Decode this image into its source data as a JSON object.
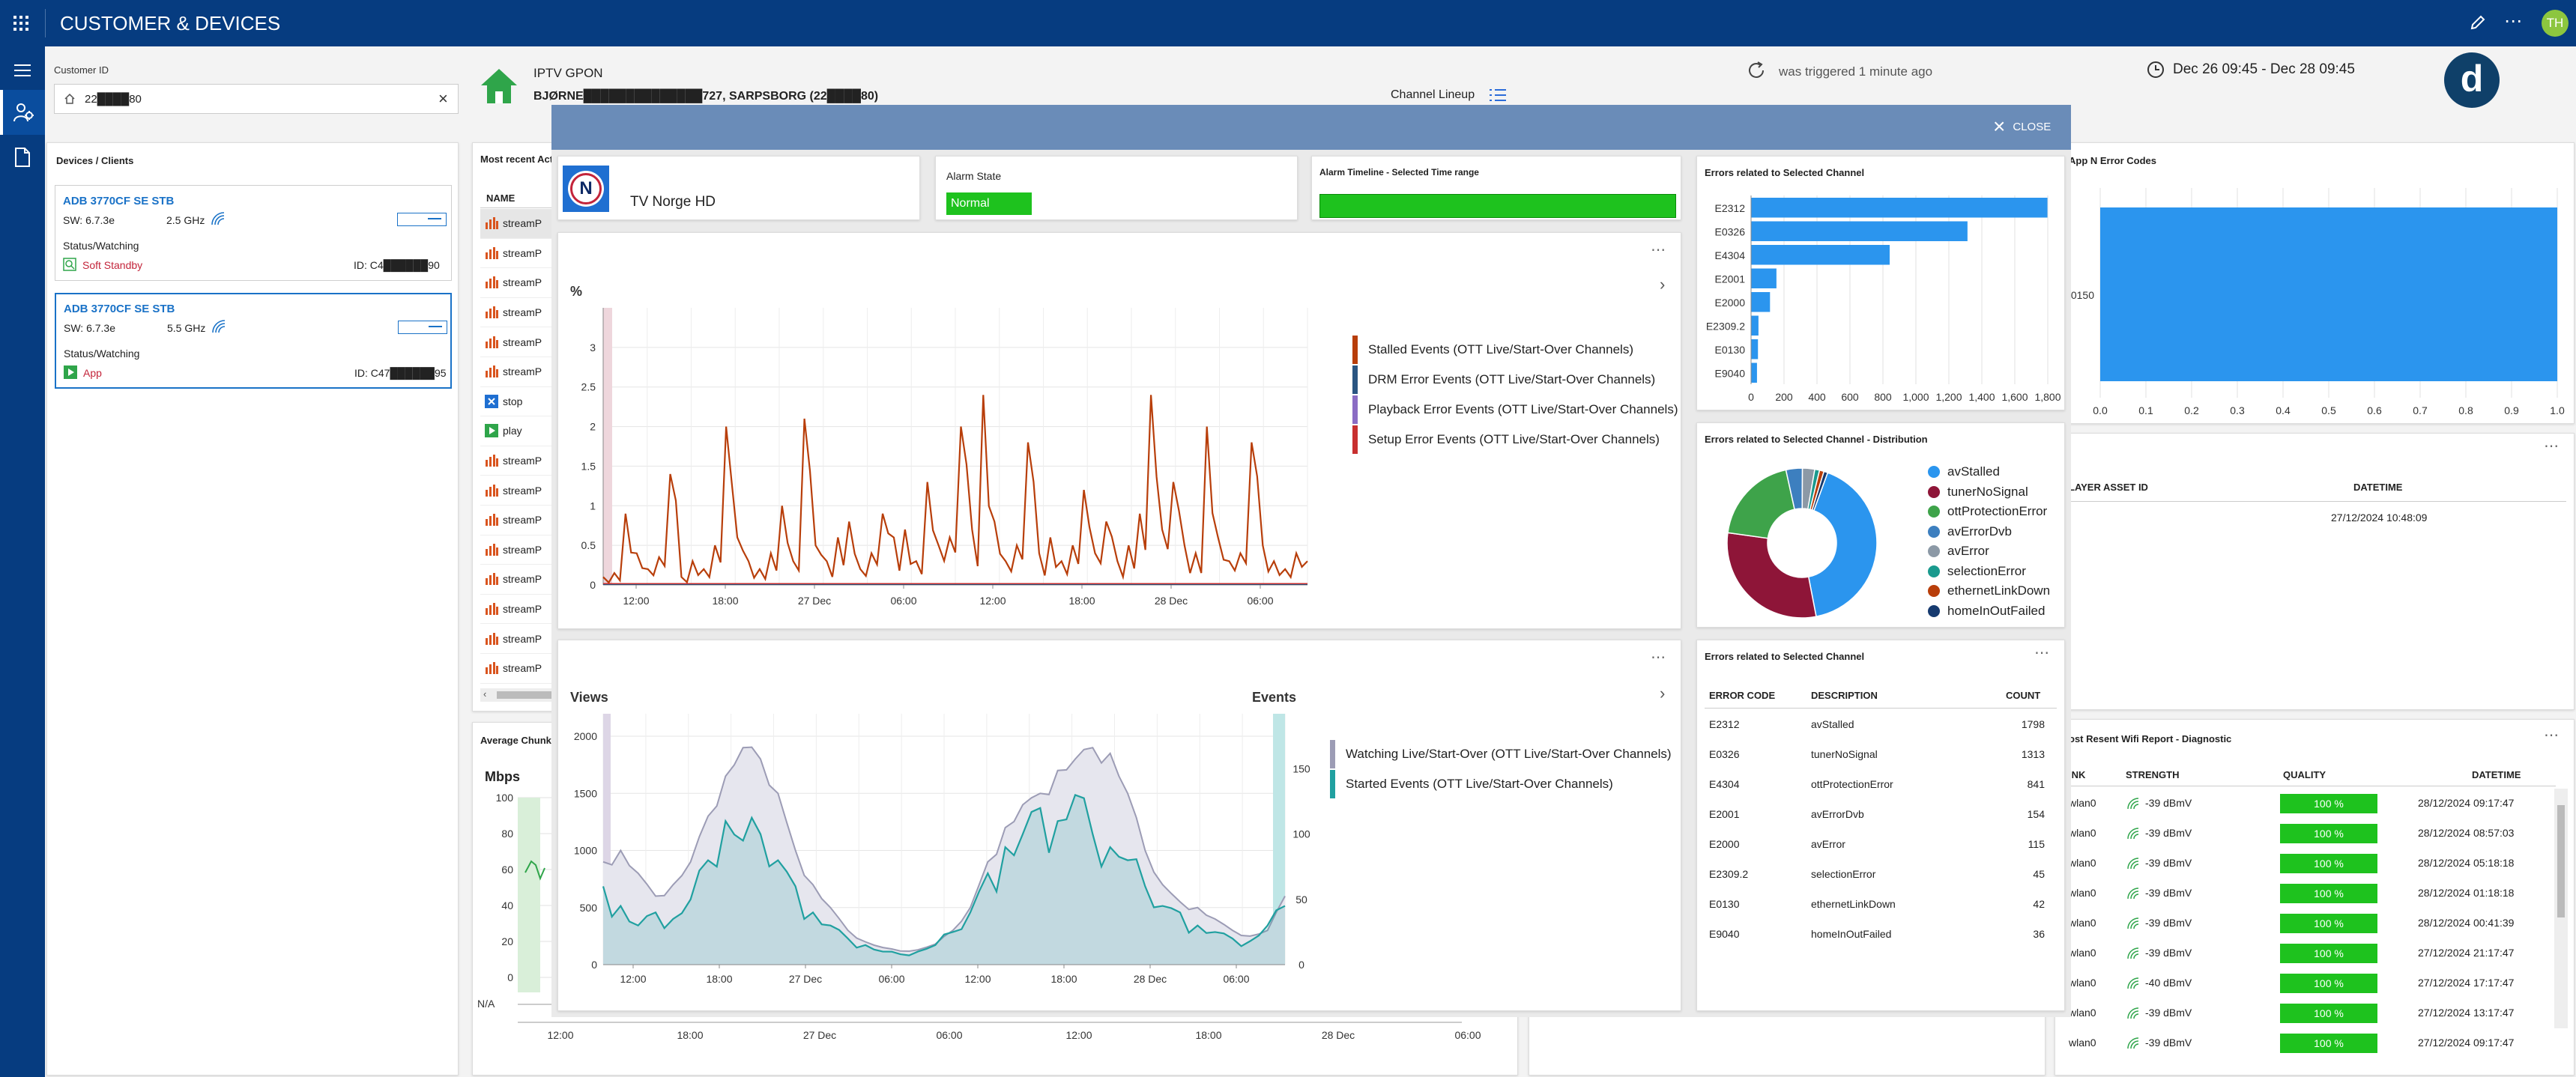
{
  "app": {
    "title": "CUSTOMER & DEVICES",
    "avatar": "TH",
    "brand_logo": "d"
  },
  "customer": {
    "label": "Customer ID",
    "value": "22████80"
  },
  "service": {
    "type": "IPTV GPON",
    "address": "BJØRNE██████████████727, SARPSBORG (22████80)",
    "channel_lineup": "Channel Lineup"
  },
  "trigger": {
    "text": "was triggered 1 minute ago"
  },
  "date_range": {
    "text": "Dec 26 09:45 - Dec 28 09:45"
  },
  "devices": {
    "title": "Devices / Clients",
    "items": [
      {
        "name": "ADB 3770CF SE STB",
        "sw": "SW: 6.7.3e",
        "wifi": "2.5 GHz",
        "status_label": "Status/Watching",
        "status": "Soft Standby",
        "id": "ID: C4██████90"
      },
      {
        "name": "ADB 3770CF SE STB",
        "sw": "SW: 6.7.3e",
        "wifi": "5.5 GHz",
        "status_label": "Status/Watching",
        "status": "App",
        "id": "ID: C47██████95"
      }
    ]
  },
  "recent_activity": {
    "title": "Most recent Act",
    "header": "NAME",
    "rows": [
      "streamP",
      "streamP",
      "streamP",
      "streamP",
      "streamP",
      "streamP",
      "stop",
      "play",
      "streamP",
      "streamP",
      "streamP",
      "streamP",
      "streamP",
      "streamP",
      "streamP",
      "streamP"
    ]
  },
  "avg_chunk": {
    "title": "Average Chunk",
    "unit": "Mbps",
    "y_ticks": [
      "100",
      "80",
      "60",
      "40",
      "20",
      "0"
    ],
    "na_label": "N/A",
    "x_ticks": [
      "12:00",
      "18:00",
      "27 Dec",
      "06:00",
      "12:00",
      "18:00",
      "28 Dec",
      "06:00"
    ]
  },
  "app_errors": {
    "title": "App N Error Codes",
    "category": "0150",
    "x_ticks": [
      "0.0",
      "0.1",
      "0.2",
      "0.3",
      "0.4",
      "0.5",
      "0.6",
      "0.7",
      "0.8",
      "0.9",
      "1.0"
    ],
    "value": 1.0
  },
  "player_asset": {
    "col1": "LAYER ASSET ID",
    "col2": "DATETIME",
    "row_datetime": "27/12/2024 10:48:09"
  },
  "wifi_report": {
    "title": "ost Resent Wifi Report - Diagnostic",
    "headers": [
      "INK",
      "STRENGTH",
      "QUALITY",
      "DATETIME"
    ],
    "rows": [
      {
        "link": "wlan0",
        "strength": "-39 dBmV",
        "quality": "100 %",
        "datetime": "28/12/2024 09:17:47"
      },
      {
        "link": "wlan0",
        "strength": "-39 dBmV",
        "quality": "100 %",
        "datetime": "28/12/2024 08:57:03"
      },
      {
        "link": "wlan0",
        "strength": "-39 dBmV",
        "quality": "100 %",
        "datetime": "28/12/2024 05:18:18"
      },
      {
        "link": "wlan0",
        "strength": "-39 dBmV",
        "quality": "100 %",
        "datetime": "28/12/2024 01:18:18"
      },
      {
        "link": "wlan0",
        "strength": "-39 dBmV",
        "quality": "100 %",
        "datetime": "28/12/2024 00:41:39"
      },
      {
        "link": "wlan0",
        "strength": "-39 dBmV",
        "quality": "100 %",
        "datetime": "27/12/2024 21:17:47"
      },
      {
        "link": "wlan0",
        "strength": "-40 dBmV",
        "quality": "100 %",
        "datetime": "27/12/2024 17:17:47"
      },
      {
        "link": "wlan0",
        "strength": "-39 dBmV",
        "quality": "100 %",
        "datetime": "27/12/2024 13:17:47"
      },
      {
        "link": "wlan0",
        "strength": "-39 dBmV",
        "quality": "100 %",
        "datetime": "27/12/2024 09:17:47"
      }
    ]
  },
  "modal": {
    "close_label": "CLOSE",
    "channel_name": "TV Norge HD",
    "channel_logo": "N",
    "alarm_state_label": "Alarm State",
    "alarm_state": "Normal",
    "alarm_timeline_label": "Alarm Timeline - Selected Time range",
    "errors_bar_title": "Errors related to Selected Channel",
    "errors_dist_title": "Errors related to Selected Channel - Distribution",
    "errors_table_title": "Errors related to Selected Channel",
    "errors_table_headers": [
      "ERROR CODE",
      "DESCRIPTION",
      "COUNT"
    ]
  },
  "colors": {
    "navy": "#063c80",
    "bar_blue": "#2b95ee",
    "green": "#1ec21e",
    "stalled": "#b83e0a",
    "watching": "#9c9cb5",
    "started": "#20a0a0"
  },
  "chart_data": [
    {
      "type": "line",
      "name": "events-percent",
      "ylabel": "%",
      "ylim": [
        0,
        3.5
      ],
      "y_ticks": [
        "0",
        "0.5",
        "1",
        "1.5",
        "2",
        "2.5",
        "3"
      ],
      "x_ticks": [
        "12:00",
        "18:00",
        "27 Dec",
        "06:00",
        "12:00",
        "18:00",
        "28 Dec",
        "06:00"
      ],
      "legend_position": "right",
      "series": [
        {
          "name": "Stalled Events (OTT Live/Start-Over Channels)",
          "color": "#b83e0a",
          "values": [
            0.1,
            0.15,
            0.9,
            0.4,
            0.2,
            0.35,
            1.4,
            0.1,
            0.3,
            0.2,
            0.5,
            2.0,
            0.6,
            0.3,
            0.2,
            0.4,
            1.0,
            0.3,
            2.1,
            0.5,
            0.3,
            0.6,
            0.8,
            0.2,
            0.4,
            0.9,
            0.6,
            0.7,
            0.3,
            1.3,
            0.5,
            0.6,
            2.0,
            0.7,
            2.4,
            0.8,
            0.3,
            0.5,
            1.8,
            0.4,
            0.6,
            0.3,
            0.5,
            1.2,
            0.4,
            0.8,
            0.3,
            0.5,
            0.9,
            2.4,
            0.7,
            1.3,
            0.5,
            0.4,
            2.0,
            0.6,
            0.3,
            0.4,
            1.8,
            0.5,
            0.3,
            0.2,
            0.4,
            0.3
          ]
        },
        {
          "name": "DRM Error Events (OTT Live/Start-Over Channels)",
          "color": "#2a5582",
          "values": [
            0,
            0,
            0,
            0,
            0,
            0,
            0,
            0
          ]
        },
        {
          "name": "Playback Error Events (OTT Live/Start-Over Channels)",
          "color": "#8b6cc4",
          "values": [
            0,
            0,
            0,
            0,
            0,
            0,
            0,
            0
          ]
        },
        {
          "name": "Setup Error Events (OTT Live/Start-Over Channels)",
          "color": "#c83030",
          "values": [
            0,
            0,
            0,
            0,
            0,
            0,
            0,
            0
          ]
        }
      ]
    },
    {
      "type": "area",
      "name": "views-events",
      "ylabel": "Views",
      "y2label": "Events",
      "ylim": [
        0,
        2000
      ],
      "y2lim": [
        0,
        175
      ],
      "y_ticks": [
        "0",
        "500",
        "1000",
        "1500",
        "2000"
      ],
      "y2_ticks": [
        "0",
        "50",
        "100",
        "150"
      ],
      "x_ticks": [
        "12:00",
        "18:00",
        "27 Dec",
        "06:00",
        "12:00",
        "18:00",
        "28 Dec",
        "06:00"
      ],
      "legend_position": "right",
      "series": [
        {
          "name": "Watching Live/Start-Over (OTT Live/Start-Over Channels)",
          "color": "#9c9cb5",
          "values": [
            900,
            1000,
            800,
            600,
            700,
            900,
            1300,
            1650,
            1900,
            1800,
            1500,
            1000,
            700,
            500,
            300,
            200,
            150,
            120,
            130,
            180,
            300,
            500,
            900,
            1200,
            1400,
            1500,
            1700,
            1800,
            1900,
            1850,
            1500,
            1000,
            700,
            550,
            500,
            400,
            300,
            250,
            300,
            600
          ]
        },
        {
          "name": "Started Events (OTT Live/Start-Over Channels)",
          "color": "#20a0a0",
          "values": [
            60,
            45,
            30,
            40,
            35,
            50,
            80,
            110,
            95,
            100,
            80,
            60,
            40,
            30,
            20,
            15,
            10,
            8,
            10,
            15,
            25,
            40,
            70,
            90,
            100,
            120,
            110,
            130,
            100,
            90,
            80,
            60,
            45,
            40,
            30,
            25,
            20,
            18,
            30,
            45
          ]
        }
      ]
    },
    {
      "type": "bar",
      "name": "errors-by-code",
      "orientation": "horizontal",
      "categories": [
        "E2312",
        "E0326",
        "E4304",
        "E2001",
        "E2000",
        "E2309.2",
        "E0130",
        "E9040"
      ],
      "values": [
        1798,
        1313,
        841,
        154,
        115,
        45,
        42,
        36
      ],
      "xlim": [
        0,
        1800
      ],
      "x_ticks": [
        "0",
        "200",
        "400",
        "600",
        "800",
        "1,000",
        "1,200",
        "1,400",
        "1,600",
        "1,800"
      ]
    },
    {
      "type": "pie",
      "name": "errors-distribution",
      "legend_position": "right",
      "labels": [
        "avStalled",
        "tunerNoSignal",
        "ottProtectionError",
        "avErrorDvb",
        "avError",
        "selectionError",
        "ethernetLinkDown",
        "homeInOutFailed"
      ],
      "values": [
        1798,
        1313,
        841,
        154,
        115,
        45,
        42,
        36
      ],
      "colors": [
        "#2b95ee",
        "#8e1538",
        "#3ea34a",
        "#3d7fbf",
        "#8c99a6",
        "#1a9a8e",
        "#b83e0a",
        "#163a6f"
      ]
    },
    {
      "type": "table",
      "name": "errors-table",
      "rows": [
        {
          "code": "E2312",
          "description": "avStalled",
          "count": "1798"
        },
        {
          "code": "E0326",
          "description": "tunerNoSignal",
          "count": "1313"
        },
        {
          "code": "E4304",
          "description": "ottProtectionError",
          "count": "841"
        },
        {
          "code": "E2001",
          "description": "avErrorDvb",
          "count": "154"
        },
        {
          "code": "E2000",
          "description": "avError",
          "count": "115"
        },
        {
          "code": "E2309.2",
          "description": "selectionError",
          "count": "45"
        },
        {
          "code": "E0130",
          "description": "ethernetLinkDown",
          "count": "42"
        },
        {
          "code": "E9040",
          "description": "homeInOutFailed",
          "count": "36"
        }
      ]
    }
  ]
}
